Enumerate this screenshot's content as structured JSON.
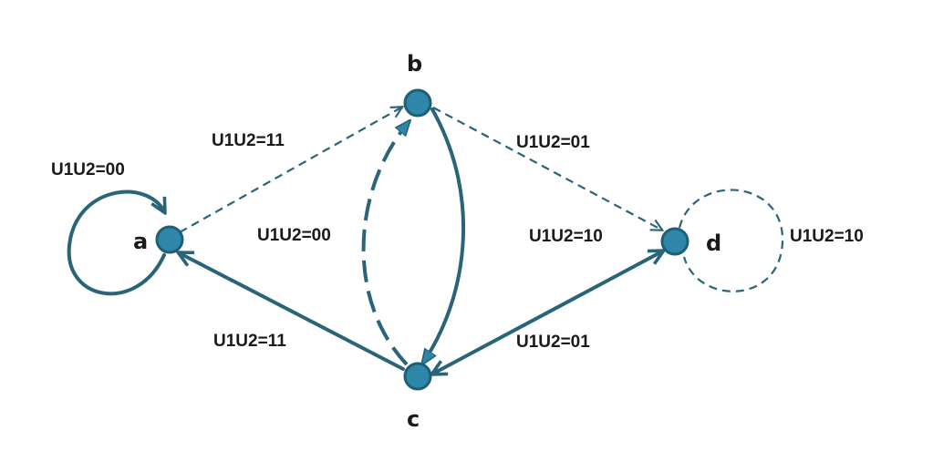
{
  "diagram": {
    "nodes": {
      "a": {
        "label": "a"
      },
      "b": {
        "label": "b"
      },
      "c": {
        "label": "c"
      },
      "d": {
        "label": "d"
      }
    },
    "edges": {
      "a_self": {
        "from": "a",
        "to": "a",
        "label": "U1U2=00",
        "style": "solid"
      },
      "a_to_b": {
        "from": "a",
        "to": "b",
        "label": "U1U2=11",
        "style": "dashed"
      },
      "c_to_b": {
        "from": "c",
        "to": "b",
        "label": "U1U2=00",
        "style": "dashed-thick"
      },
      "b_to_c": {
        "from": "b",
        "to": "c",
        "style": "solid"
      },
      "b_to_d": {
        "from": "b",
        "to": "d",
        "label": "U1U2=01",
        "style": "dashed"
      },
      "c_to_a": {
        "from": "c",
        "to": "a",
        "label": "U1U2=11",
        "style": "solid"
      },
      "d_to_c": {
        "from": "d",
        "to": "c",
        "label": "U1U2=01",
        "style": "solid"
      },
      "c_to_d": {
        "from": "c",
        "to": "d",
        "label": "U1U2=10",
        "style": "solid"
      },
      "d_self": {
        "from": "d",
        "to": "d",
        "label": "U1U2=10",
        "style": "dashed"
      }
    },
    "colors": {
      "node_fill": "#2e86a8",
      "edge": "#2a6478",
      "text": "#1a1a1a"
    }
  }
}
